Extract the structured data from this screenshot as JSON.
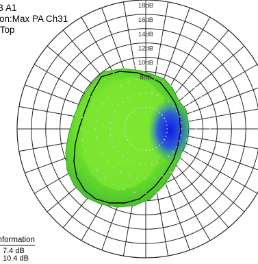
{
  "header": {
    "line1": "B A1",
    "line2": "ion:Max PA Ch31",
    "line3": ":Top"
  },
  "info": {
    "title": "information",
    "values": [
      "7.4 dB",
      "10.4 dB"
    ]
  },
  "colors": {
    "grid": "#222222",
    "grid_fill": "#ffffff",
    "green_outer": "#5fd92b",
    "green_inner": "#7ee632",
    "blue": "#1a1fe0",
    "contour": "#000000",
    "dots": "#d8d8d8"
  },
  "chart_data": {
    "type": "polar-heatmap",
    "radial_axis": {
      "unit": "dB",
      "ticks": [
        "18dB",
        "16dB",
        "14dB",
        "12dB",
        "10dB",
        "8dB"
      ],
      "tick_values": [
        18,
        16,
        14,
        12,
        10,
        8
      ]
    },
    "angular_divisions": 36,
    "color_scale": [
      "low: green",
      "high: blue"
    ],
    "max_region": "right side (blue area)"
  }
}
